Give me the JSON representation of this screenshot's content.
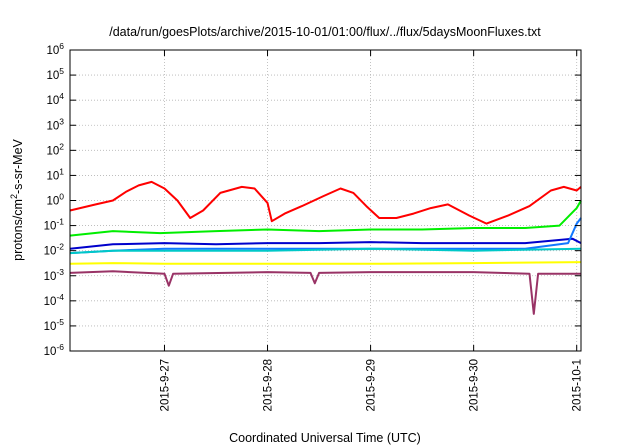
{
  "chart_data": {
    "type": "line",
    "title": "/data/run/goesPlots/archive/2015-10-01/01:00/flux/../flux/5daysMoonFluxes.txt",
    "xlabel": "Coordinated Universal Time (UTC)",
    "ylabel": "protons/cm²-s-sr-MeV",
    "ylabel_parts": {
      "before": "protons/cm",
      "sup": "2",
      "after": "-s-sr-MeV"
    },
    "yscale": "log",
    "ylim": [
      1e-06,
      1000000.0
    ],
    "y_ticks": [
      {
        "exp": -6,
        "base": "10",
        "sup": "-6"
      },
      {
        "exp": -5,
        "base": "10",
        "sup": "-5"
      },
      {
        "exp": -4,
        "base": "10",
        "sup": "-4"
      },
      {
        "exp": -3,
        "base": "10",
        "sup": "-3"
      },
      {
        "exp": -2,
        "base": "10",
        "sup": "-2"
      },
      {
        "exp": -1,
        "base": "10",
        "sup": "-1"
      },
      {
        "exp": 0,
        "base": "10",
        "sup": "0"
      },
      {
        "exp": 1,
        "base": "10",
        "sup": "1"
      },
      {
        "exp": 2,
        "base": "10",
        "sup": "2"
      },
      {
        "exp": 3,
        "base": "10",
        "sup": "3"
      },
      {
        "exp": 4,
        "base": "10",
        "sup": "4"
      },
      {
        "exp": 5,
        "base": "10",
        "sup": "5"
      },
      {
        "exp": 6,
        "base": "10",
        "sup": "6"
      }
    ],
    "xlim": [
      "2015-09-26 02:00",
      "2015-10-01 01:00"
    ],
    "x_ticks": [
      {
        "label": "2015-9-27",
        "t": "2015-09-27 00:00"
      },
      {
        "label": "2015-9-28",
        "t": "2015-09-28 00:00"
      },
      {
        "label": "2015-9-29",
        "t": "2015-09-29 00:00"
      },
      {
        "label": "2015-9-30",
        "t": "2015-09-30 00:00"
      },
      {
        "label": "2015-10-1",
        "t": "2015-10-01 00:00"
      }
    ],
    "grid": true,
    "legend": "none",
    "series": [
      {
        "color": "#ff0000",
        "points": [
          [
            "2015-09-26 02:00",
            0.4
          ],
          [
            "2015-09-26 08:00",
            0.7
          ],
          [
            "2015-09-26 12:00",
            1.0
          ],
          [
            "2015-09-26 15:00",
            2.2
          ],
          [
            "2015-09-26 18:00",
            4.0
          ],
          [
            "2015-09-26 21:00",
            5.5
          ],
          [
            "2015-09-27 00:00",
            3.0
          ],
          [
            "2015-09-27 03:00",
            1.0
          ],
          [
            "2015-09-27 06:00",
            0.2
          ],
          [
            "2015-09-27 09:00",
            0.4
          ],
          [
            "2015-09-27 13:00",
            2.0
          ],
          [
            "2015-09-27 18:00",
            3.5
          ],
          [
            "2015-09-27 21:00",
            3.0
          ],
          [
            "2015-09-28 00:00",
            0.8
          ],
          [
            "2015-09-28 01:00",
            0.15
          ],
          [
            "2015-09-28 04:00",
            0.3
          ],
          [
            "2015-09-28 08:00",
            0.6
          ],
          [
            "2015-09-28 13:00",
            1.5
          ],
          [
            "2015-09-28 17:00",
            3.0
          ],
          [
            "2015-09-28 20:00",
            2.0
          ],
          [
            "2015-09-28 23:00",
            0.6
          ],
          [
            "2015-09-29 02:00",
            0.2
          ],
          [
            "2015-09-29 06:00",
            0.2
          ],
          [
            "2015-09-29 10:00",
            0.3
          ],
          [
            "2015-09-29 14:00",
            0.5
          ],
          [
            "2015-09-29 18:00",
            0.7
          ],
          [
            "2015-09-29 23:00",
            0.25
          ],
          [
            "2015-09-30 03:00",
            0.12
          ],
          [
            "2015-09-30 08:00",
            0.25
          ],
          [
            "2015-09-30 13:00",
            0.6
          ],
          [
            "2015-09-30 18:00",
            2.5
          ],
          [
            "2015-09-30 21:00",
            3.5
          ],
          [
            "2015-10-01 00:00",
            2.5
          ],
          [
            "2015-10-01 01:00",
            3.5
          ]
        ]
      },
      {
        "color": "#00ee00",
        "points": [
          [
            "2015-09-26 02:00",
            0.04
          ],
          [
            "2015-09-26 12:00",
            0.06
          ],
          [
            "2015-09-26 23:00",
            0.05
          ],
          [
            "2015-09-27 12:00",
            0.06
          ],
          [
            "2015-09-28 00:00",
            0.07
          ],
          [
            "2015-09-28 12:00",
            0.06
          ],
          [
            "2015-09-29 00:00",
            0.07
          ],
          [
            "2015-09-29 12:00",
            0.07
          ],
          [
            "2015-09-30 00:00",
            0.08
          ],
          [
            "2015-09-30 12:00",
            0.08
          ],
          [
            "2015-09-30 20:00",
            0.1
          ],
          [
            "2015-10-01 00:00",
            0.5
          ],
          [
            "2015-10-01 01:00",
            1.0
          ]
        ]
      },
      {
        "color": "#0000cc",
        "points": [
          [
            "2015-09-26 02:00",
            0.012
          ],
          [
            "2015-09-26 12:00",
            0.018
          ],
          [
            "2015-09-27 00:00",
            0.02
          ],
          [
            "2015-09-27 12:00",
            0.018
          ],
          [
            "2015-09-28 00:00",
            0.02
          ],
          [
            "2015-09-28 12:00",
            0.02
          ],
          [
            "2015-09-29 00:00",
            0.022
          ],
          [
            "2015-09-29 12:00",
            0.02
          ],
          [
            "2015-09-30 00:00",
            0.02
          ],
          [
            "2015-09-30 12:00",
            0.02
          ],
          [
            "2015-09-30 23:00",
            0.03
          ],
          [
            "2015-10-01 01:00",
            0.02
          ]
        ]
      },
      {
        "color": "#1177ff",
        "points": [
          [
            "2015-09-26 02:00",
            0.008
          ],
          [
            "2015-09-26 12:00",
            0.01
          ],
          [
            "2015-09-27 00:00",
            0.012
          ],
          [
            "2015-09-27 12:00",
            0.012
          ],
          [
            "2015-09-28 00:00",
            0.012
          ],
          [
            "2015-09-28 12:00",
            0.012
          ],
          [
            "2015-09-29 00:00",
            0.012
          ],
          [
            "2015-09-29 12:00",
            0.012
          ],
          [
            "2015-09-30 00:00",
            0.012
          ],
          [
            "2015-09-30 12:00",
            0.012
          ],
          [
            "2015-09-30 22:00",
            0.02
          ],
          [
            "2015-10-01 00:00",
            0.12
          ],
          [
            "2015-10-01 01:00",
            0.2
          ]
        ]
      },
      {
        "color": "#00c8c8",
        "points": [
          [
            "2015-09-26 02:00",
            0.008
          ],
          [
            "2015-09-26 12:00",
            0.01
          ],
          [
            "2015-09-27 00:00",
            0.01
          ],
          [
            "2015-09-28 00:00",
            0.01
          ],
          [
            "2015-09-29 00:00",
            0.012
          ],
          [
            "2015-09-30 00:00",
            0.01
          ],
          [
            "2015-10-01 01:00",
            0.012
          ]
        ]
      },
      {
        "color": "#ffff00",
        "points": [
          [
            "2015-09-26 02:00",
            0.003
          ],
          [
            "2015-09-26 12:00",
            0.0032
          ],
          [
            "2015-09-27 00:00",
            0.003
          ],
          [
            "2015-09-28 00:00",
            0.003
          ],
          [
            "2015-09-29 00:00",
            0.003
          ],
          [
            "2015-09-30 00:00",
            0.0032
          ],
          [
            "2015-10-01 01:00",
            0.0035
          ]
        ]
      },
      {
        "color": "#993366",
        "points": [
          [
            "2015-09-26 02:00",
            0.0013
          ],
          [
            "2015-09-26 12:00",
            0.0015
          ],
          [
            "2015-09-27 00:00",
            0.0012
          ],
          [
            "2015-09-27 01:00",
            0.0004
          ],
          [
            "2015-09-27 02:00",
            0.0012
          ],
          [
            "2015-09-28 00:00",
            0.0014
          ],
          [
            "2015-09-28 10:00",
            0.0013
          ],
          [
            "2015-09-28 11:00",
            0.0005
          ],
          [
            "2015-09-28 12:00",
            0.0013
          ],
          [
            "2015-09-29 00:00",
            0.0014
          ],
          [
            "2015-09-30 00:00",
            0.0014
          ],
          [
            "2015-09-30 13:00",
            0.0012
          ],
          [
            "2015-09-30 14:00",
            3e-05
          ],
          [
            "2015-09-30 15:00",
            0.0012
          ],
          [
            "2015-10-01 01:00",
            0.0012
          ]
        ]
      }
    ]
  }
}
